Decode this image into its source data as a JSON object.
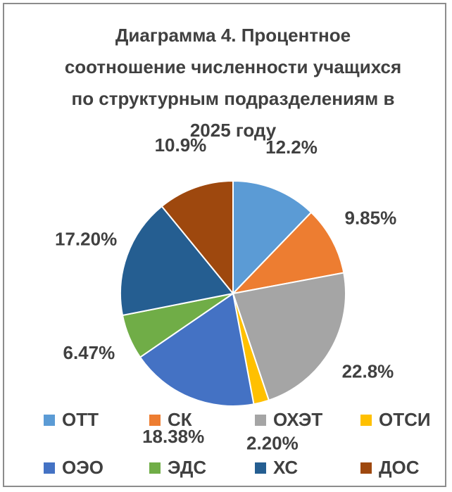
{
  "chart_data": {
    "type": "pie",
    "title": "Диаграмма 4. Процентное соотношение численности учащихся по структурным подразделениям в 2025 году",
    "categories": [
      "ОТТ",
      "СК",
      "ОХЭТ",
      "ОТСИ",
      "ОЭО",
      "ЭДС",
      "ХС",
      "ДОС"
    ],
    "values": [
      12.2,
      9.85,
      22.8,
      2.2,
      18.38,
      6.47,
      17.2,
      10.9
    ],
    "value_labels": [
      "12.2%",
      "9.85%",
      "22.8%",
      "2.20%",
      "18.38%",
      "6.47%",
      "17.20%",
      "10.9%"
    ],
    "colors": [
      "#5b9bd5",
      "#ed7d31",
      "#a5a5a5",
      "#ffc000",
      "#4472c4",
      "#70ad47",
      "#255e91",
      "#9e480e"
    ],
    "legend": "bottom"
  }
}
